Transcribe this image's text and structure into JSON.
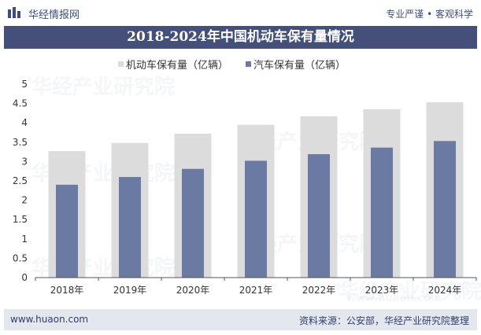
{
  "header": {
    "brand": "华经情报网",
    "tagline": "专业严谨 • 客观科学"
  },
  "title": "2018-2024年中国机动车保有量情况",
  "legend": [
    {
      "label": "机动车保有量（亿辆）",
      "color": "#dcdcdc"
    },
    {
      "label": "汽车保有量（亿辆）",
      "color": "#6b7aa3"
    }
  ],
  "footer": {
    "url": "www.huaon.com",
    "source": "资料来源：公安部，华经产业研究院整理"
  },
  "watermark": {
    "text": "华经产业研究院",
    "url": "www.huaon.com"
  },
  "colors": {
    "title_bg": "#44507a",
    "series_motor": "#dcdcdc",
    "series_car": "#6b7aa3"
  },
  "chart_data": {
    "type": "bar",
    "title": "2018-2024年中国机动车保有量情况",
    "categories": [
      "2018年",
      "2019年",
      "2020年",
      "2021年",
      "2022年",
      "2023年",
      "2024年"
    ],
    "series": [
      {
        "name": "机动车保有量（亿辆）",
        "values": [
          3.27,
          3.48,
          3.72,
          3.95,
          4.17,
          4.35,
          4.53
        ]
      },
      {
        "name": "汽车保有量（亿辆）",
        "values": [
          2.4,
          2.6,
          2.81,
          3.02,
          3.19,
          3.36,
          3.53
        ]
      }
    ],
    "yticks": [
      "0",
      "0.5",
      "1",
      "1.5",
      "2",
      "2.5",
      "3",
      "3.5",
      "4",
      "4.5",
      "5"
    ],
    "ylim": [
      0,
      5
    ],
    "xlabel": "",
    "ylabel": ""
  }
}
